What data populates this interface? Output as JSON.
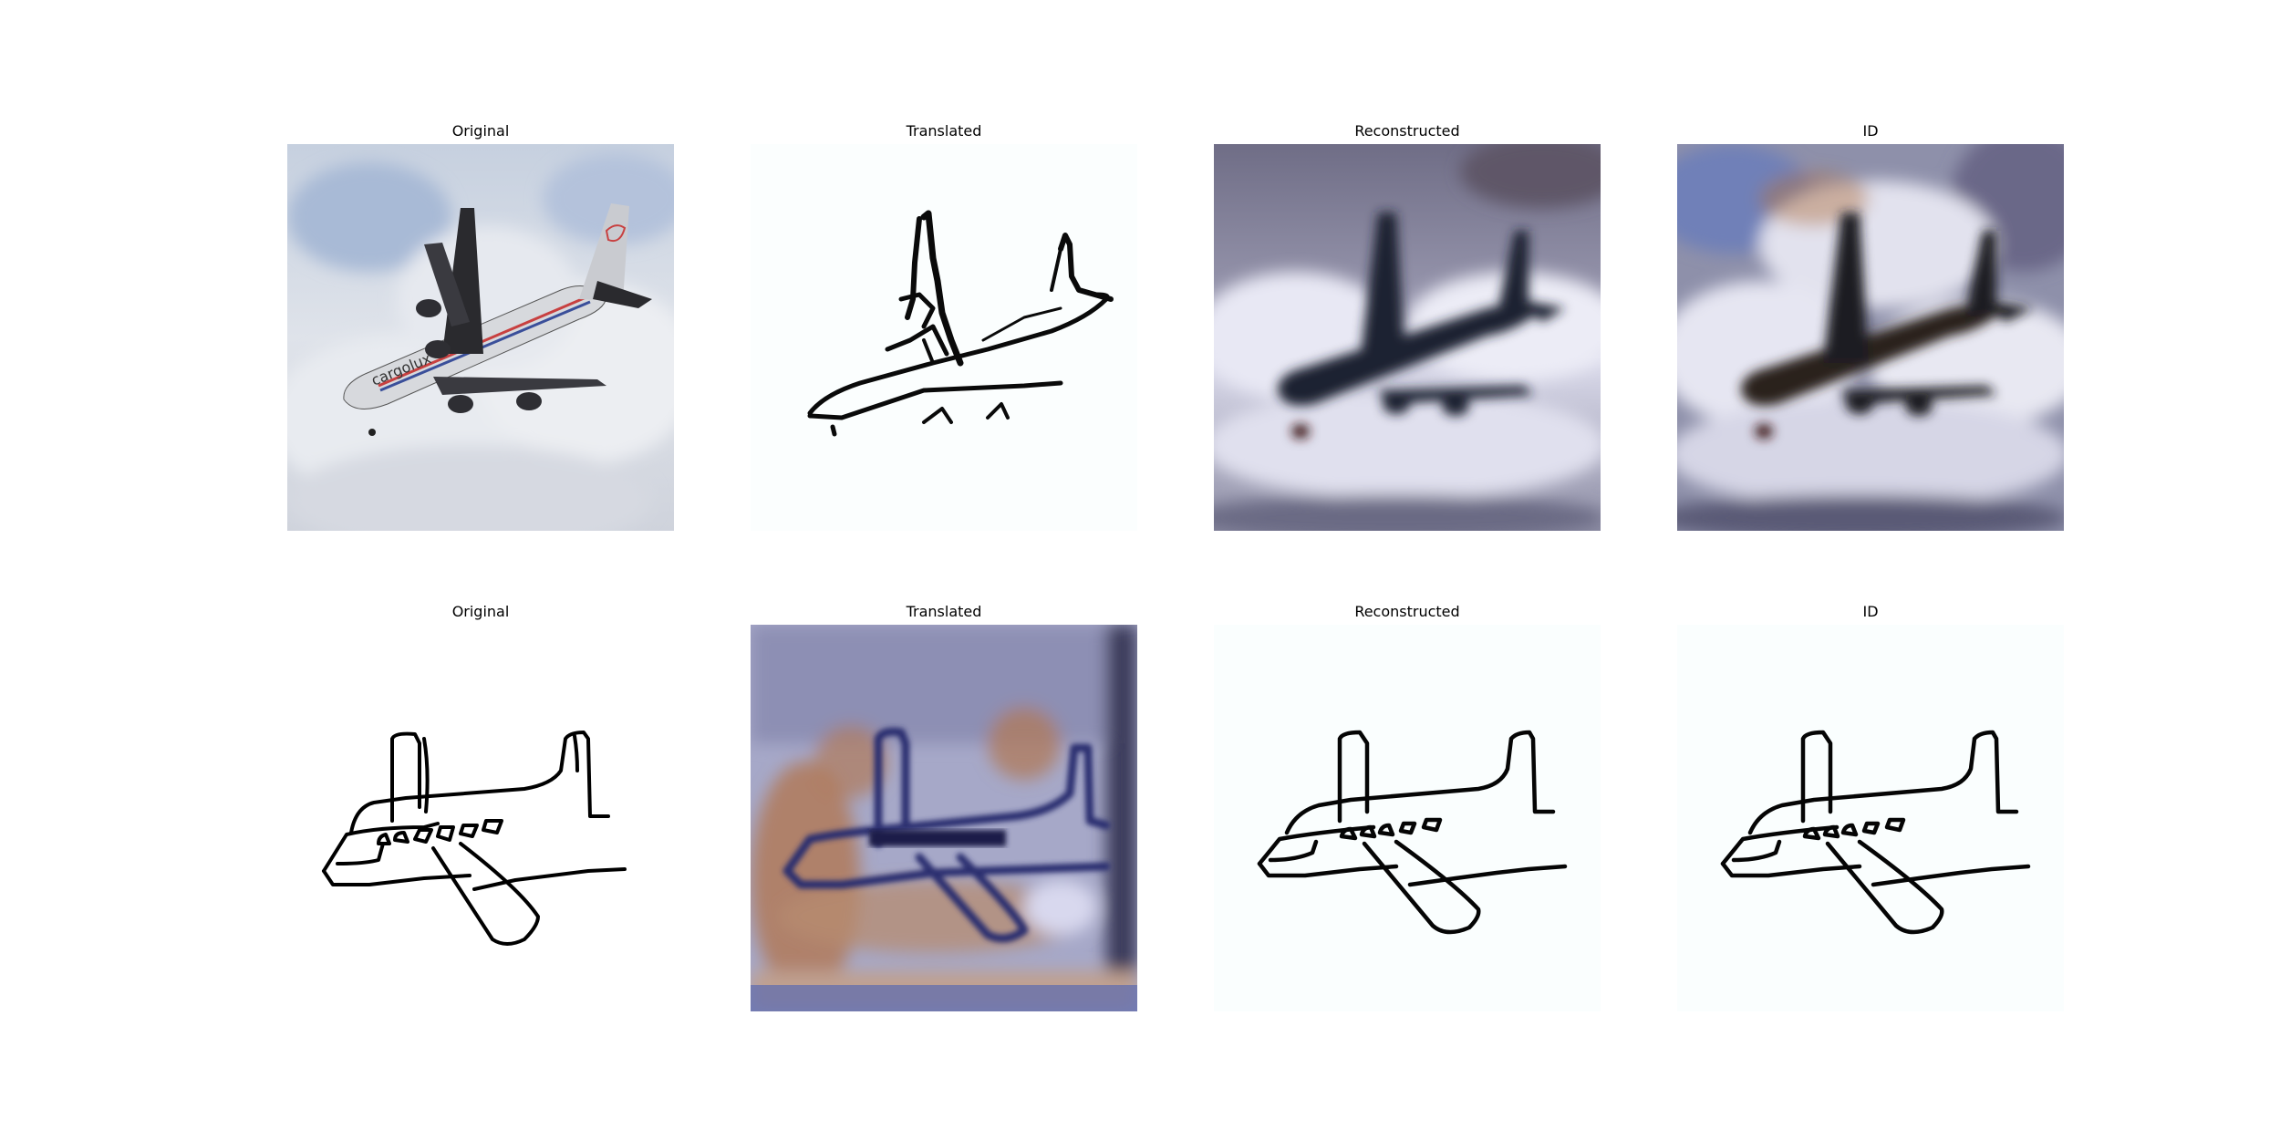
{
  "grid": {
    "rows": [
      {
        "panels": [
          {
            "title": "Original",
            "image": "photo-cargo-airplane"
          },
          {
            "title": "Translated",
            "image": "sketch-airplane"
          },
          {
            "title": "Reconstructed",
            "image": "blurry-photo-airplane"
          },
          {
            "title": "ID",
            "image": "blurry-photo-airplane"
          }
        ]
      },
      {
        "panels": [
          {
            "title": "Original",
            "image": "sketch-airplane"
          },
          {
            "title": "Translated",
            "image": "blurry-photo-airplane-indoor"
          },
          {
            "title": "Reconstructed",
            "image": "sketch-airplane"
          },
          {
            "title": "ID",
            "image": "sketch-airplane"
          }
        ]
      }
    ]
  },
  "photo_text": "cargolux"
}
